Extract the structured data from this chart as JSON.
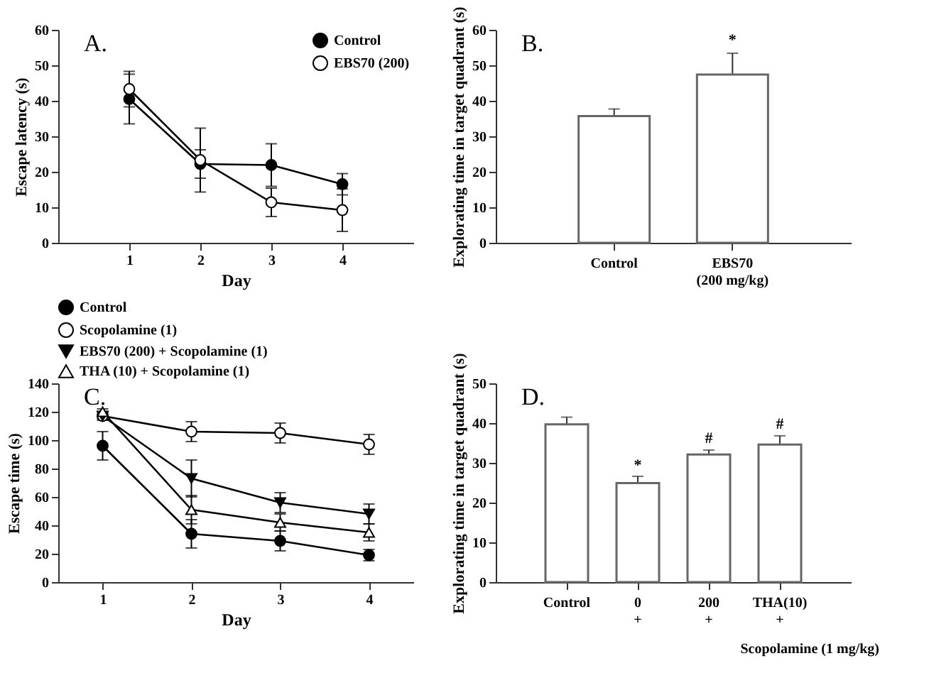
{
  "chart_data": [
    {
      "type": "line",
      "title": "A.",
      "xlabel": "Day",
      "ylabel": "Escape latency (s)",
      "x": [
        1,
        2,
        3,
        4
      ],
      "xlim": [
        0,
        5
      ],
      "xticks": [
        1,
        2,
        3,
        4
      ],
      "ylim": [
        0,
        60
      ],
      "yticks": [
        0,
        10,
        20,
        30,
        40,
        50,
        60
      ],
      "legend": "top right",
      "series": [
        {
          "name": "Control",
          "color": "#000000",
          "marker": "circle",
          "values": [
            40.5,
            22.2,
            21.9,
            16.5
          ],
          "errors": [
            7,
            4,
            6,
            3
          ]
        },
        {
          "name": "EBS70 (200)",
          "color": "#ffffff",
          "marker": "circle",
          "values": [
            43.3,
            23.3,
            11.4,
            9.2
          ],
          "errors": [
            5,
            9,
            4,
            6
          ]
        }
      ]
    },
    {
      "type": "bar",
      "title": "B.",
      "ylabel": "Explorating time in target quadrant (s)",
      "categories": [
        "Control",
        "EBS70\n(200 mg/kg)"
      ],
      "values": [
        35.7,
        47.4
      ],
      "errors": [
        2,
        6
      ],
      "color": "#ffffff",
      "ylim": [
        0,
        60
      ],
      "yticks": [
        0,
        10,
        20,
        30,
        40,
        50,
        60
      ],
      "annotations": [
        {
          "text": "*",
          "x": "EBS70\n(200 mg/kg)",
          "y": 55
        }
      ]
    },
    {
      "type": "line",
      "title": "C.",
      "xlabel": "Day",
      "ylabel": "Escape time (s)",
      "x": [
        1,
        2,
        3,
        4
      ],
      "xlim": [
        0.5,
        4.5
      ],
      "xticks": [
        1,
        2,
        3,
        4
      ],
      "ylim": [
        0,
        140
      ],
      "yticks": [
        0,
        20,
        40,
        60,
        80,
        100,
        120,
        140
      ],
      "legend": "top",
      "series": [
        {
          "name": "Control",
          "color": "#000000",
          "marker": "circle",
          "values": [
            96,
            34,
            29,
            19
          ],
          "errors": [
            10,
            10,
            7,
            4
          ]
        },
        {
          "name": "Scopolamine (1)",
          "color": "#ffffff",
          "marker": "circle",
          "values": [
            117,
            106,
            105,
            97
          ],
          "errors": [
            3,
            7,
            7,
            7
          ]
        },
        {
          "name": "EBS70 (200) + Scopolamine (1)",
          "color": "#000000",
          "marker": "triangle-down",
          "values": [
            117,
            73,
            56,
            48
          ],
          "errors": [
            2,
            13,
            7,
            7
          ]
        },
        {
          "name": "THA (10) + Scopolamine (1)",
          "color": "#ffffff",
          "marker": "triangle",
          "values": [
            120,
            51,
            42,
            35
          ],
          "errors": [
            2,
            10,
            6,
            6
          ]
        }
      ]
    },
    {
      "type": "bar",
      "title": "D.",
      "ylabel": "Explorating time in target quadrant (s)",
      "categories": [
        "Control",
        "0\n+",
        "200\n+",
        "THA(10)\n+"
      ],
      "values": [
        39.7,
        24.9,
        32.1,
        34.6
      ],
      "errors": [
        1.8,
        1.7,
        1.1,
        2.2
      ],
      "color": "#ffffff",
      "ylim": [
        0,
        50
      ],
      "yticks": [
        0,
        10,
        20,
        30,
        40,
        50
      ],
      "annotations": [
        {
          "text": "*",
          "x": "0\n+",
          "y": 27.5
        },
        {
          "text": "#",
          "x": "200\n+",
          "y": 34.3
        },
        {
          "text": "#",
          "x": "THA(10)\n+",
          "y": 37.8
        },
        "Scopolamine (1 mg/kg)"
      ]
    }
  ]
}
